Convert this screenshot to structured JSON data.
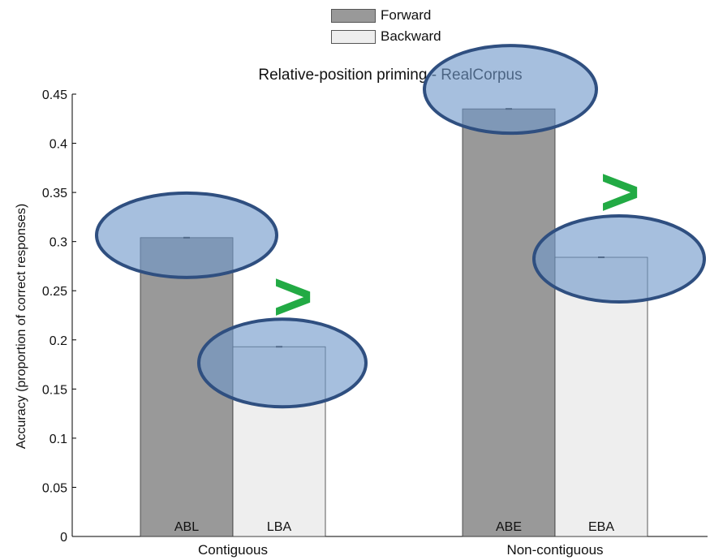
{
  "legend": {
    "items": [
      {
        "label": "Forward",
        "color": "#999999"
      },
      {
        "label": "Backward",
        "color": "#eeeeee"
      }
    ]
  },
  "chart_data": {
    "type": "bar",
    "title": "Relative-position priming - RealCorpus",
    "xlabel": "",
    "ylabel": "Accuracy (proportion of correct responses)",
    "ylim": [
      0,
      0.45
    ],
    "yticks": [
      "0",
      "0.05",
      "0.1",
      "0.15",
      "0.2",
      "0.25",
      "0.3",
      "0.35",
      "0.4",
      "0.45"
    ],
    "grid": false,
    "legend_position": "top",
    "categories": [
      "Contiguous",
      "Non-contiguous"
    ],
    "series": [
      {
        "name": "Forward",
        "color": "#999999",
        "values": [
          0.304,
          0.435
        ],
        "bar_labels": [
          "ABL",
          "ABE"
        ]
      },
      {
        "name": "Backward",
        "color": "#eeeeee",
        "values": [
          0.193,
          0.284
        ],
        "bar_labels": [
          "LBA",
          "EBA"
        ]
      }
    ],
    "annotations": {
      "comparison_symbol": ">",
      "comparison_color": "#22aa44",
      "highlight_fill": "#6f97c9",
      "highlight_stroke": "#2f4f80"
    }
  }
}
